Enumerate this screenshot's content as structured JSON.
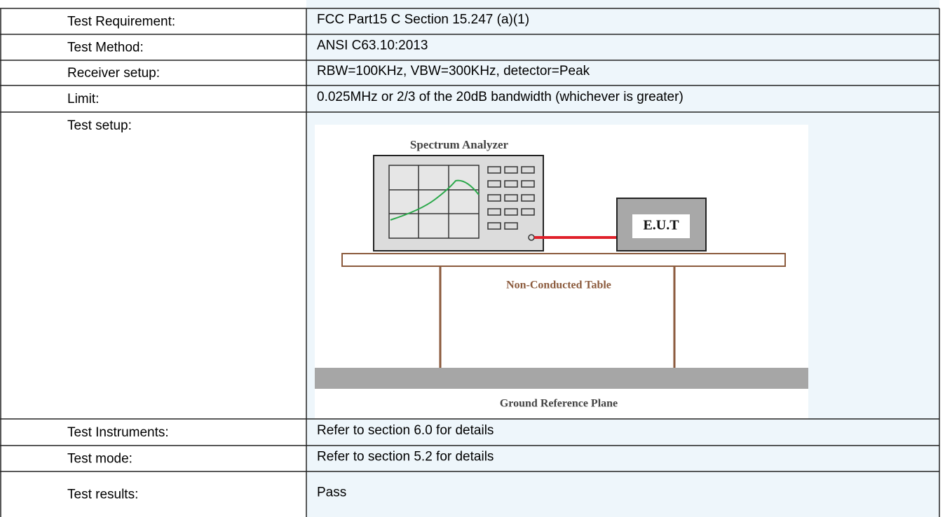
{
  "table": {
    "rows": [
      {
        "label": "Test Requirement:",
        "value": "FCC Part15 C Section 15.247 (a)(1)"
      },
      {
        "label": "Test Method:",
        "value": "ANSI C63.10:2013"
      },
      {
        "label": "Receiver setup:",
        "value": "RBW=100KHz, VBW=300KHz, detector=Peak"
      },
      {
        "label": "Limit:",
        "value": "0.025MHz or 2/3 of the 20dB bandwidth (whichever is greater)"
      },
      {
        "label": "Test setup:"
      },
      {
        "label": "Test Instruments:",
        "value": "Refer to section 6.0 for details"
      },
      {
        "label": "Test mode:",
        "value": "Refer to section 5.2 for details"
      },
      {
        "label": "Test results:",
        "value": "Pass"
      }
    ]
  },
  "diagram": {
    "analyzer": "Spectrum Analyzer",
    "device": "E.U.T",
    "table": "Non-Conducted Table",
    "ground": "Ground Reference Plane"
  }
}
